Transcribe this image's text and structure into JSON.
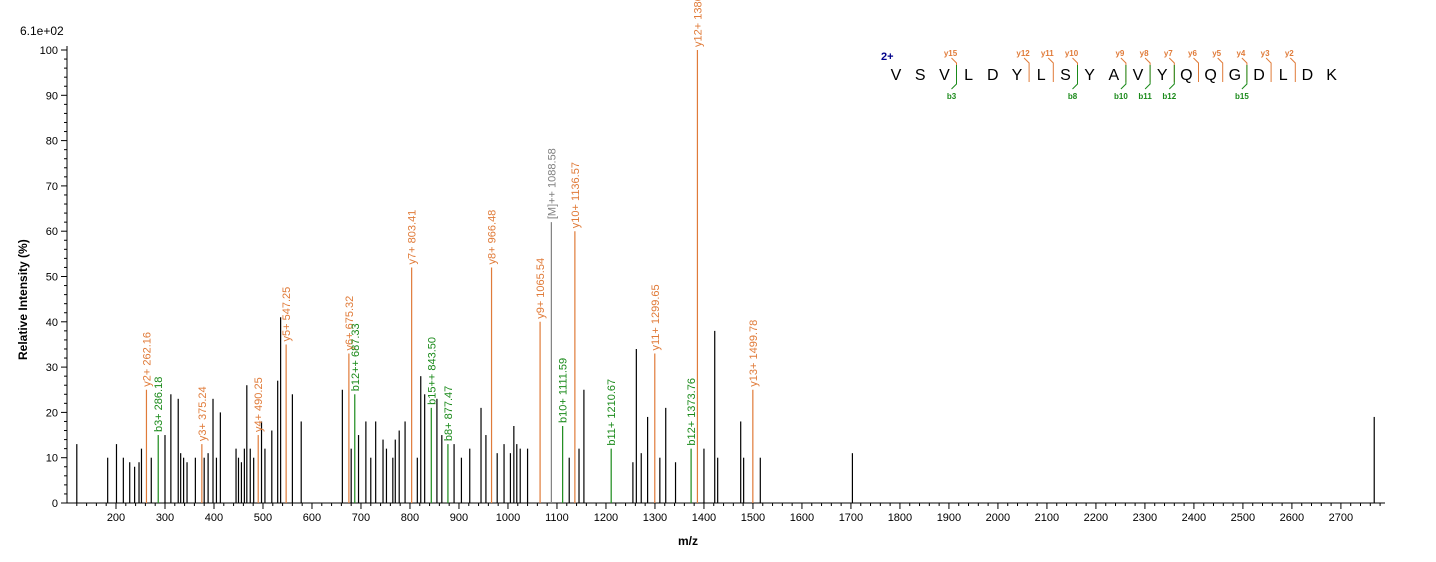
{
  "scale_label": "6.1e+02",
  "charge_label": "2+",
  "chart_data": {
    "type": "bar",
    "xlabel": "m/z",
    "ylabel": "Relative   Intensity (%)",
    "xlim": [
      100,
      2790
    ],
    "ylim": [
      0,
      100
    ],
    "x_ticks": [
      200,
      300,
      400,
      500,
      600,
      700,
      800,
      900,
      1000,
      1100,
      1200,
      1300,
      1400,
      1500,
      1600,
      1700,
      1800,
      1900,
      2000,
      2100,
      2200,
      2300,
      2400,
      2500,
      2600,
      2700
    ],
    "y_ticks": [
      0,
      10,
      20,
      30,
      40,
      50,
      60,
      70,
      80,
      90,
      100
    ],
    "colors": {
      "y_ion": "#e07b39",
      "b_ion": "#1a8a1a",
      "precursor": "#808080",
      "other": "#000000",
      "charge": "#00008b"
    },
    "peaks": [
      {
        "mz": 120,
        "i": 13,
        "t": "other"
      },
      {
        "mz": 183,
        "i": 10,
        "t": "other"
      },
      {
        "mz": 201,
        "i": 13,
        "t": "other"
      },
      {
        "mz": 215,
        "i": 10,
        "t": "other"
      },
      {
        "mz": 228,
        "i": 9,
        "t": "other"
      },
      {
        "mz": 238,
        "i": 8,
        "t": "other"
      },
      {
        "mz": 247,
        "i": 9,
        "t": "other"
      },
      {
        "mz": 252,
        "i": 12,
        "t": "other"
      },
      {
        "mz": 262.16,
        "i": 25,
        "t": "y",
        "label": "y2+ 262.16"
      },
      {
        "mz": 272,
        "i": 10,
        "t": "other"
      },
      {
        "mz": 286.18,
        "i": 15,
        "t": "b",
        "label": "b3+ 286.18"
      },
      {
        "mz": 300,
        "i": 15,
        "t": "other"
      },
      {
        "mz": 312,
        "i": 24,
        "t": "other"
      },
      {
        "mz": 327,
        "i": 23,
        "t": "other"
      },
      {
        "mz": 332,
        "i": 11,
        "t": "other"
      },
      {
        "mz": 338,
        "i": 10,
        "t": "other"
      },
      {
        "mz": 345,
        "i": 9,
        "t": "other"
      },
      {
        "mz": 362,
        "i": 10,
        "t": "other"
      },
      {
        "mz": 375.24,
        "i": 13,
        "t": "y",
        "label": "y3+ 375.24"
      },
      {
        "mz": 380,
        "i": 10,
        "t": "other"
      },
      {
        "mz": 388,
        "i": 11,
        "t": "other"
      },
      {
        "mz": 398,
        "i": 23,
        "t": "other"
      },
      {
        "mz": 405,
        "i": 10,
        "t": "other"
      },
      {
        "mz": 413,
        "i": 20,
        "t": "other"
      },
      {
        "mz": 445,
        "i": 12,
        "t": "other"
      },
      {
        "mz": 450,
        "i": 10,
        "t": "other"
      },
      {
        "mz": 456,
        "i": 9,
        "t": "other"
      },
      {
        "mz": 462,
        "i": 12,
        "t": "other"
      },
      {
        "mz": 467,
        "i": 26,
        "t": "other"
      },
      {
        "mz": 474,
        "i": 12,
        "t": "other"
      },
      {
        "mz": 481,
        "i": 10,
        "t": "other"
      },
      {
        "mz": 490.25,
        "i": 15,
        "t": "y",
        "label": "y4+ 490.25"
      },
      {
        "mz": 497,
        "i": 18,
        "t": "other"
      },
      {
        "mz": 504,
        "i": 12,
        "t": "other"
      },
      {
        "mz": 518,
        "i": 16,
        "t": "other"
      },
      {
        "mz": 530,
        "i": 27,
        "t": "other"
      },
      {
        "mz": 536,
        "i": 41,
        "t": "other"
      },
      {
        "mz": 547.25,
        "i": 35,
        "t": "y",
        "label": "y5+ 547.25"
      },
      {
        "mz": 560,
        "i": 24,
        "t": "other"
      },
      {
        "mz": 578,
        "i": 18,
        "t": "other"
      },
      {
        "mz": 662,
        "i": 25,
        "t": "other"
      },
      {
        "mz": 675.32,
        "i": 33,
        "t": "y",
        "label": "y6+ 675.32"
      },
      {
        "mz": 680,
        "i": 12,
        "t": "other"
      },
      {
        "mz": 687.33,
        "i": 24,
        "t": "b",
        "label": "b12++ 687.33"
      },
      {
        "mz": 695,
        "i": 15,
        "t": "other"
      },
      {
        "mz": 710,
        "i": 18,
        "t": "other"
      },
      {
        "mz": 720,
        "i": 10,
        "t": "other"
      },
      {
        "mz": 730,
        "i": 18,
        "t": "other"
      },
      {
        "mz": 745,
        "i": 14,
        "t": "other"
      },
      {
        "mz": 752,
        "i": 12,
        "t": "other"
      },
      {
        "mz": 765,
        "i": 10,
        "t": "other"
      },
      {
        "mz": 770,
        "i": 14,
        "t": "other"
      },
      {
        "mz": 778,
        "i": 16,
        "t": "other"
      },
      {
        "mz": 790,
        "i": 18,
        "t": "other"
      },
      {
        "mz": 803.41,
        "i": 52,
        "t": "y",
        "label": "y7+ 803.41"
      },
      {
        "mz": 815,
        "i": 10,
        "t": "other"
      },
      {
        "mz": 822,
        "i": 28,
        "t": "other"
      },
      {
        "mz": 830,
        "i": 24,
        "t": "other"
      },
      {
        "mz": 843.5,
        "i": 21,
        "t": "b",
        "label": "b15++ 843.50"
      },
      {
        "mz": 855,
        "i": 23,
        "t": "other"
      },
      {
        "mz": 865,
        "i": 15,
        "t": "other"
      },
      {
        "mz": 877.47,
        "i": 13,
        "t": "b",
        "label": "b8+ 877.47"
      },
      {
        "mz": 890,
        "i": 13,
        "t": "other"
      },
      {
        "mz": 905,
        "i": 10,
        "t": "other"
      },
      {
        "mz": 922,
        "i": 12,
        "t": "other"
      },
      {
        "mz": 945,
        "i": 21,
        "t": "other"
      },
      {
        "mz": 955,
        "i": 15,
        "t": "other"
      },
      {
        "mz": 966.48,
        "i": 52,
        "t": "y",
        "label": "y8+ 966.48"
      },
      {
        "mz": 978,
        "i": 11,
        "t": "other"
      },
      {
        "mz": 992,
        "i": 13,
        "t": "other"
      },
      {
        "mz": 1005,
        "i": 11,
        "t": "other"
      },
      {
        "mz": 1012,
        "i": 17,
        "t": "other"
      },
      {
        "mz": 1018,
        "i": 13,
        "t": "other"
      },
      {
        "mz": 1025,
        "i": 12,
        "t": "other"
      },
      {
        "mz": 1040,
        "i": 12,
        "t": "other"
      },
      {
        "mz": 1065.54,
        "i": 40,
        "t": "y",
        "label": "y9+ 1065.54"
      },
      {
        "mz": 1088.58,
        "i": 62,
        "t": "p",
        "label": "[M]++ 1088.58"
      },
      {
        "mz": 1111.59,
        "i": 17,
        "t": "b",
        "label": "b10+ 1111.59"
      },
      {
        "mz": 1125,
        "i": 10,
        "t": "other"
      },
      {
        "mz": 1136.57,
        "i": 60,
        "t": "y",
        "label": "y10+ 1136.57"
      },
      {
        "mz": 1145,
        "i": 12,
        "t": "other"
      },
      {
        "mz": 1155,
        "i": 25,
        "t": "other"
      },
      {
        "mz": 1210.67,
        "i": 12,
        "t": "b",
        "label": "b11+ 1210.67"
      },
      {
        "mz": 1255,
        "i": 9,
        "t": "other"
      },
      {
        "mz": 1262,
        "i": 34,
        "t": "other"
      },
      {
        "mz": 1272,
        "i": 11,
        "t": "other"
      },
      {
        "mz": 1285,
        "i": 19,
        "t": "other"
      },
      {
        "mz": 1299.65,
        "i": 33,
        "t": "y",
        "label": "y11+ 1299.65"
      },
      {
        "mz": 1310,
        "i": 10,
        "t": "other"
      },
      {
        "mz": 1322,
        "i": 21,
        "t": "other"
      },
      {
        "mz": 1342,
        "i": 9,
        "t": "other"
      },
      {
        "mz": 1373.76,
        "i": 12,
        "t": "b",
        "label": "b12+ 1373.76"
      },
      {
        "mz": 1386.67,
        "i": 100,
        "t": "y",
        "label": "y12+ 1386.67"
      },
      {
        "mz": 1400,
        "i": 12,
        "t": "other"
      },
      {
        "mz": 1422,
        "i": 38,
        "t": "other"
      },
      {
        "mz": 1428,
        "i": 10,
        "t": "other"
      },
      {
        "mz": 1475,
        "i": 18,
        "t": "other"
      },
      {
        "mz": 1481,
        "i": 10,
        "t": "other"
      },
      {
        "mz": 1499.78,
        "i": 25,
        "t": "y",
        "label": "y13+ 1499.78"
      },
      {
        "mz": 1515,
        "i": 10,
        "t": "other"
      },
      {
        "mz": 1703,
        "i": 11,
        "t": "other"
      },
      {
        "mz": 2768,
        "i": 19,
        "t": "other"
      }
    ],
    "sequence": [
      "V",
      "S",
      "V",
      "L",
      "D",
      "Y",
      "L",
      "S",
      "Y",
      "A",
      "V",
      "Y",
      "Q",
      "Q",
      "G",
      "D",
      "L",
      "D",
      "K"
    ],
    "y_fragments": [
      {
        "after": 3,
        "label": "y15"
      },
      {
        "after": 6,
        "label": "y12"
      },
      {
        "after": 7,
        "label": "y11"
      },
      {
        "after": 8,
        "label": "y10"
      },
      {
        "after": 10,
        "label": "y9"
      },
      {
        "after": 11,
        "label": "y8"
      },
      {
        "after": 12,
        "label": "y7"
      },
      {
        "after": 13,
        "label": "y6"
      },
      {
        "after": 14,
        "label": "y5"
      },
      {
        "after": 15,
        "label": "y4"
      },
      {
        "after": 16,
        "label": "y3"
      },
      {
        "after": 17,
        "label": "y2"
      }
    ],
    "b_fragments": [
      {
        "after": 3,
        "label": "b3"
      },
      {
        "after": 8,
        "label": "b8"
      },
      {
        "after": 10,
        "label": "b10"
      },
      {
        "after": 11,
        "label": "b11"
      },
      {
        "after": 12,
        "label": "b12"
      },
      {
        "after": 15,
        "label": "b15"
      }
    ]
  }
}
